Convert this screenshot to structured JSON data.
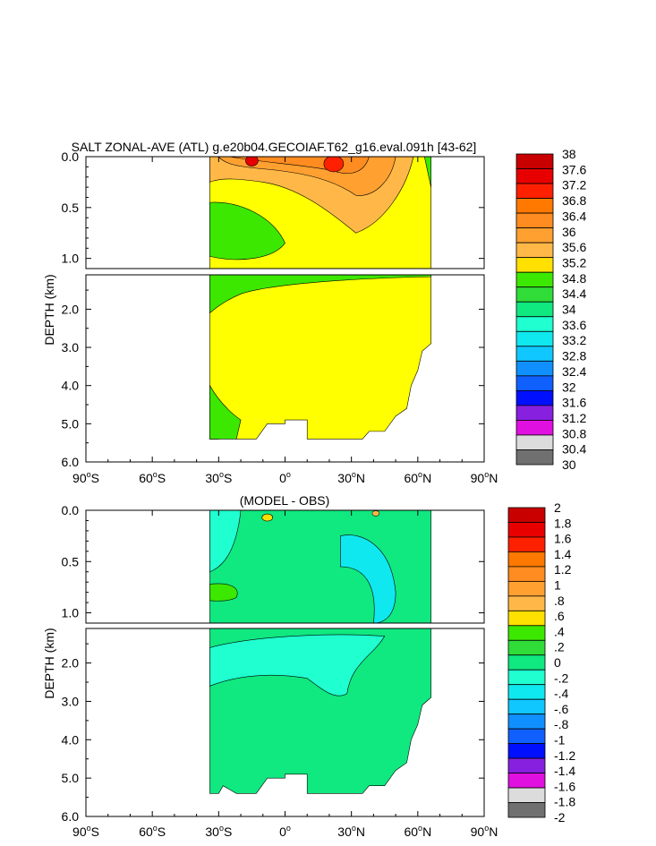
{
  "chart_data": [
    {
      "type": "heatmap",
      "title": "SALT ZONAL-AVE (ATL) g.e20b04.GECOIAF.T62_g16.eval.091h [43-62]",
      "ylabel": "DEPTH (km)",
      "xlabel": "",
      "xticks": [
        "90°S",
        "60°S",
        "30°S",
        "0°",
        "30°N",
        "60°N",
        "90°N"
      ],
      "xtick_values": [
        -90,
        -60,
        -30,
        0,
        30,
        60,
        90
      ],
      "yticks_upper": [
        "0.0",
        "0.5",
        "1.0"
      ],
      "ytick_values_upper": [
        0.0,
        0.5,
        1.0
      ],
      "yticks_lower": [
        "2.0",
        "3.0",
        "4.0",
        "5.0",
        "6.0"
      ],
      "ytick_values_lower": [
        2.0,
        3.0,
        4.0,
        5.0,
        6.0
      ],
      "ylim_upper": [
        0.0,
        1.1
      ],
      "ylim_lower": [
        1.1,
        6.0
      ],
      "xlim": [
        -90,
        90
      ],
      "colorbar_labels": [
        "38",
        "37.6",
        "37.2",
        "36.8",
        "36.4",
        "36",
        "35.6",
        "35.2",
        "34.8",
        "34.4",
        "34",
        "33.6",
        "33.2",
        "32.8",
        "32.4",
        "32",
        "31.6",
        "31.2",
        "30.8",
        "30.4",
        "30"
      ],
      "colorbar_colors": [
        "#c80000",
        "#e80000",
        "#ff2000",
        "#ff7800",
        "#ff8c20",
        "#ffa030",
        "#ffb848",
        "#ffe000",
        "#3ce800",
        "#30dc38",
        "#10e880",
        "#20ffd0",
        "#10e8f0",
        "#10c8ff",
        "#1090ff",
        "#1060ff",
        "#0010ff",
        "#8820e0",
        "#e010e0",
        "#dcdcdc",
        "#707070"
      ]
    },
    {
      "type": "heatmap",
      "title": "(MODEL - OBS)",
      "ylabel": "DEPTH (km)",
      "xlabel": "",
      "xticks": [
        "90°S",
        "60°S",
        "30°S",
        "0°",
        "30°N",
        "60°N",
        "90°N"
      ],
      "xtick_values": [
        -90,
        -60,
        -30,
        0,
        30,
        60,
        90
      ],
      "yticks_upper": [
        "0.0",
        "0.5",
        "1.0"
      ],
      "ytick_values_upper": [
        0.0,
        0.5,
        1.0
      ],
      "yticks_lower": [
        "2.0",
        "3.0",
        "4.0",
        "5.0",
        "6.0"
      ],
      "ytick_values_lower": [
        2.0,
        3.0,
        4.0,
        5.0,
        6.0
      ],
      "ylim_upper": [
        0.0,
        1.1
      ],
      "ylim_lower": [
        1.1,
        6.0
      ],
      "xlim": [
        -90,
        90
      ],
      "colorbar_labels": [
        "2",
        "1.8",
        "1.6",
        "1.4",
        "1.2",
        "1",
        ".8",
        ".6",
        ".4",
        ".2",
        "0",
        "-.2",
        "-.4",
        "-.6",
        "-.8",
        "-1",
        "-1.2",
        "-1.4",
        "-1.6",
        "-1.8",
        "-2"
      ],
      "colorbar_colors": [
        "#c80000",
        "#e80000",
        "#ff2000",
        "#ff7800",
        "#ff8c20",
        "#ffa030",
        "#ffb848",
        "#ffe000",
        "#3ce800",
        "#30dc38",
        "#10e880",
        "#20ffd0",
        "#10e8f0",
        "#10c8ff",
        "#1090ff",
        "#1060ff",
        "#0010ff",
        "#8820e0",
        "#e010e0",
        "#dcdcdc",
        "#707070"
      ]
    }
  ]
}
